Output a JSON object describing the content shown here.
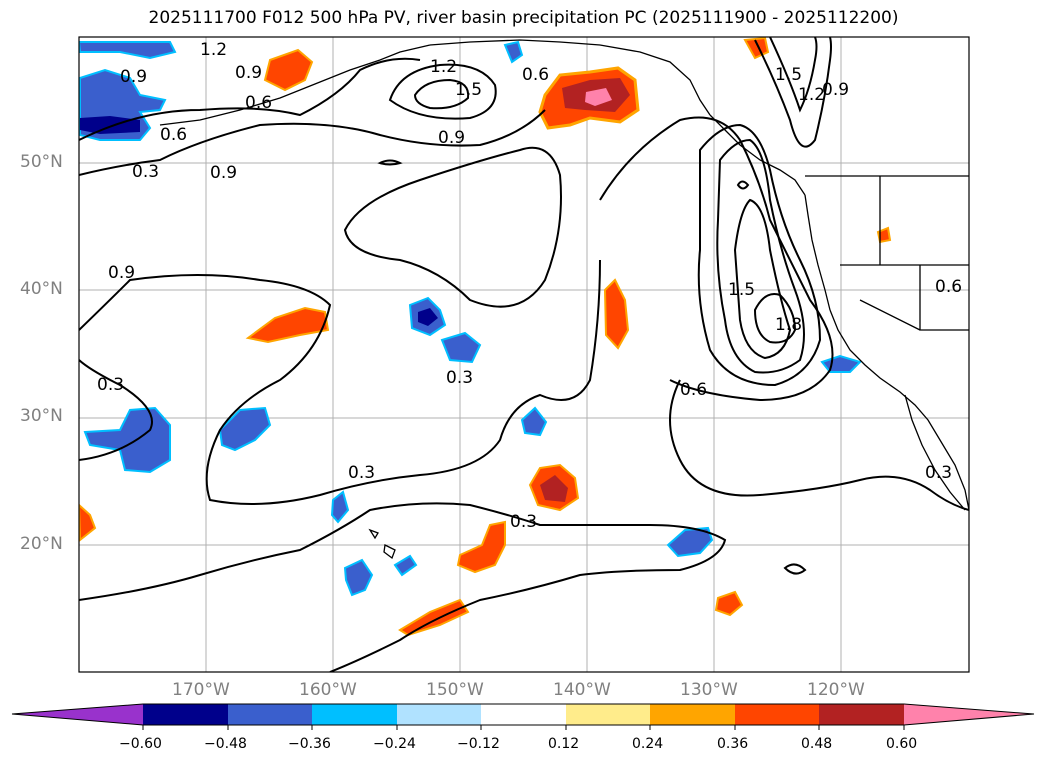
{
  "title": "2025111700 F012 500 hPa PV, river basin precipitation PC (2025111900 - 2025112200)",
  "latitude_labels": [
    {
      "deg": 50,
      "text": "50°N"
    },
    {
      "deg": 40,
      "text": "40°N"
    },
    {
      "deg": 30,
      "text": "30°N"
    },
    {
      "deg": 20,
      "text": "20°N"
    }
  ],
  "longitude_labels": [
    {
      "deg": -170,
      "text": "170°W"
    },
    {
      "deg": -160,
      "text": "160°W"
    },
    {
      "deg": -150,
      "text": "150°W"
    },
    {
      "deg": -140,
      "text": "140°W"
    },
    {
      "deg": -130,
      "text": "130°W"
    },
    {
      "deg": -120,
      "text": "120°W"
    }
  ],
  "map_extent": {
    "lon_min": -180,
    "lon_max": -110,
    "lat_min": 10,
    "lat_max": 60
  },
  "contour_labels": [
    "1.2",
    "0.9",
    "0.9",
    "1.2",
    "1.5",
    "0.6",
    "1.5",
    "1.2",
    "0.9",
    "0.6",
    "0.6",
    "0.9",
    "0.3",
    "0.9",
    "0.9",
    "1.5",
    "1.8",
    "0.3",
    "0.3",
    "0.6",
    "0.3",
    "0.3",
    "0.3",
    "0.6"
  ],
  "colorbar": {
    "colors": [
      "#9932cc",
      "#00008b",
      "#3a5fcd",
      "#00bfff",
      "#b0e2ff",
      "#ffffff",
      "#ffec8b",
      "#ffa500",
      "#ff4500",
      "#b22222",
      "#ff82ab"
    ],
    "tick_labels": [
      "−0.60",
      "−0.48",
      "−0.36",
      "−0.24",
      "−0.12",
      "0.12",
      "0.24",
      "0.36",
      "0.48",
      "0.60"
    ]
  }
}
